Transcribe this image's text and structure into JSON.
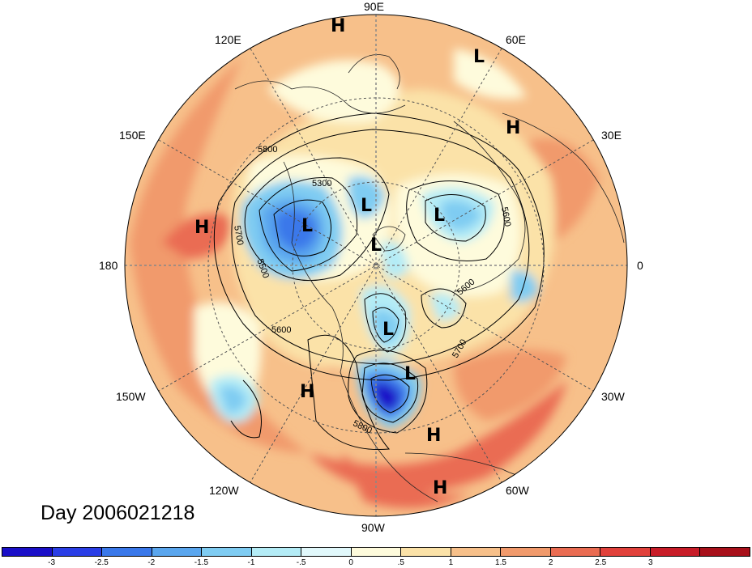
{
  "map": {
    "lon_labels": {
      "e90": "90E",
      "e120": "120E",
      "e60": "60E",
      "e150": "150E",
      "e30": "30E",
      "w180": "180",
      "zero": "0",
      "w150": "150W",
      "w30": "30W",
      "w120": "120W",
      "w60": "60W",
      "w90": "90W"
    },
    "pressure_centers": [
      {
        "id": "h-top",
        "label": "H"
      },
      {
        "id": "l-top-right",
        "label": "L"
      },
      {
        "id": "h-right-upper",
        "label": "H"
      },
      {
        "id": "h-left",
        "label": "H"
      },
      {
        "id": "l-upper-left",
        "label": "L"
      },
      {
        "id": "l-upper-center",
        "label": "L"
      },
      {
        "id": "l-upper-right",
        "label": "L"
      },
      {
        "id": "l-center",
        "label": "L"
      },
      {
        "id": "l-mid",
        "label": "L"
      },
      {
        "id": "l-lower",
        "label": "L"
      },
      {
        "id": "h-lower-left",
        "label": "H"
      },
      {
        "id": "h-lower-right",
        "label": "H"
      },
      {
        "id": "h-bottom",
        "label": "H"
      }
    ],
    "contour_labels": {
      "c5800a": "5800",
      "c5300": "5300",
      "c5700a": "5700",
      "c5500": "5500",
      "c5600a": "5600",
      "c5600b": "5600",
      "c5600c": "5600",
      "c5700b": "5700",
      "c5800b": "5800"
    },
    "day_label": "Day 2006021218"
  },
  "colorbar": {
    "colors": [
      "#1a0fc8",
      "#2a3ee6",
      "#3a78ea",
      "#5aa6ee",
      "#7fccf2",
      "#b4ecf6",
      "#e1f8fb",
      "#fefbdc",
      "#fbe2a8",
      "#f7c08a",
      "#f19a6c",
      "#ea6c52",
      "#e1413b",
      "#c81c28",
      "#a8101a"
    ],
    "labels": [
      "-3",
      "-2.5",
      "-2",
      "-1.5",
      "-1",
      "-.5",
      "0",
      ".5",
      "1",
      "1.5",
      "2",
      "2.5",
      "3"
    ]
  }
}
